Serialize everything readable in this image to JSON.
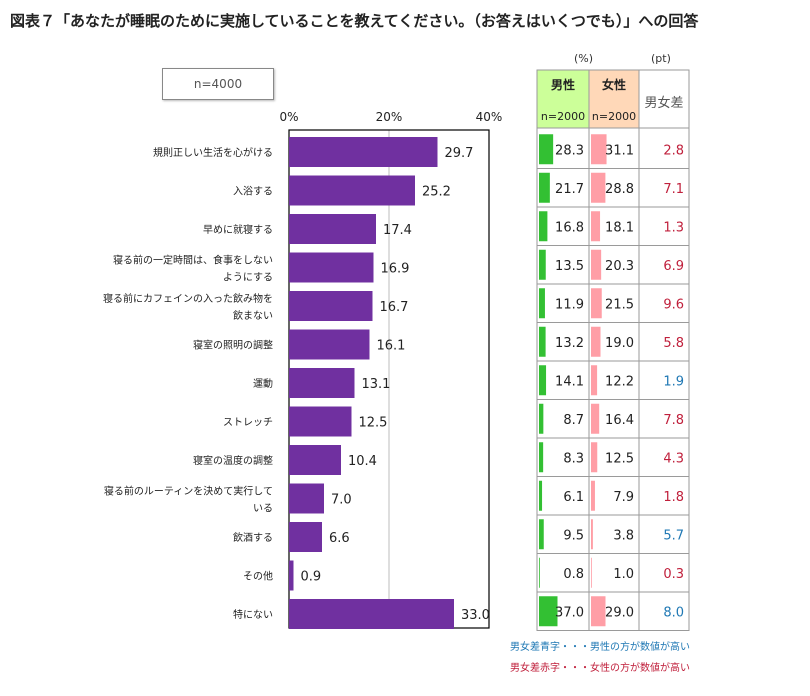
{
  "title": "図表７「あなたが睡眠のために実施していることを教えてください。（お答えはいくつでも）」への回答",
  "n_label": "n=4000",
  "units": {
    "percent": "(%)",
    "pt": "(pt)"
  },
  "table_headers": {
    "male": "男性",
    "male_n": "n=2000",
    "female": "女性",
    "female_n": "n=2000",
    "diff": "男女差"
  },
  "legend": {
    "blue_note": "男女差青字・・・男性の方が数値が高い",
    "red_note": "男女差赤字・・・女性の方が数値が高い"
  },
  "colors": {
    "bar": "#7030a0",
    "male_bar": "#33c033",
    "female_bar": "#ff9ea6",
    "male_header": "#ccff99",
    "female_header": "#ffd8b8",
    "diff_blue": "#1f78b4",
    "diff_red": "#c0203c"
  },
  "chart_data": [
    {
      "type": "bar",
      "orientation": "horizontal",
      "categories": [
        "規則正しい生活を心がける",
        "入浴する",
        "早めに就寝する",
        "寝る前の一定時間は、食事をしないようにする",
        "寝る前にカフェインの入った飲み物を飲まない",
        "寝室の照明の調整",
        "運動",
        "ストレッチ",
        "寝室の温度の調整",
        "寝る前のルーティンを決めて実行している",
        "飲酒する",
        "その他",
        "特にない"
      ],
      "category_lines": [
        [
          "規則正しい生活を心がける"
        ],
        [
          "入浴する"
        ],
        [
          "早めに就寝する"
        ],
        [
          "寝る前の一定時間は、食事をしない",
          "ようにする"
        ],
        [
          "寝る前にカフェインの入った飲み物を",
          "飲まない"
        ],
        [
          "寝室の照明の調整"
        ],
        [
          "運動"
        ],
        [
          "ストレッチ"
        ],
        [
          "寝室の温度の調整"
        ],
        [
          "寝る前のルーティンを決めて実行して",
          "いる"
        ],
        [
          "飲酒する"
        ],
        [
          "その他"
        ],
        [
          "特にない"
        ]
      ],
      "values": [
        29.7,
        25.2,
        17.4,
        16.9,
        16.7,
        16.1,
        13.1,
        12.5,
        10.4,
        7.0,
        6.6,
        0.9,
        33.0
      ],
      "xlim": [
        0,
        40
      ],
      "ticks": [
        "0%",
        "20%",
        "40%"
      ],
      "grid": "vertical at 20%"
    },
    {
      "type": "table",
      "columns": [
        "男性",
        "女性",
        "男女差"
      ],
      "male": [
        28.3,
        21.7,
        16.8,
        13.5,
        11.9,
        13.2,
        14.1,
        8.7,
        8.3,
        6.1,
        9.5,
        0.8,
        37.0
      ],
      "female": [
        31.1,
        28.8,
        18.1,
        20.3,
        21.5,
        19.0,
        12.2,
        16.4,
        12.5,
        7.9,
        3.8,
        1.0,
        29.0
      ],
      "diff": [
        2.8,
        7.1,
        1.3,
        6.9,
        9.6,
        5.8,
        1.9,
        7.8,
        4.3,
        1.8,
        5.7,
        0.3,
        8.0
      ],
      "diff_higher": [
        "female",
        "female",
        "female",
        "female",
        "female",
        "female",
        "male",
        "female",
        "female",
        "female",
        "male",
        "female",
        "male"
      ]
    }
  ]
}
